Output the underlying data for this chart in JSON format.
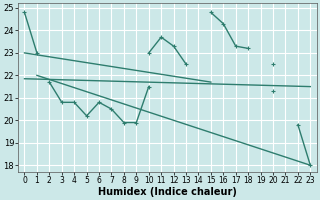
{
  "xlabel": "Humidex (Indice chaleur)",
  "bg_color": "#cce8e8",
  "grid_color": "#ffffff",
  "line_color": "#2e7d6e",
  "xlim": [
    -0.5,
    23.5
  ],
  "ylim": [
    17.7,
    25.2
  ],
  "yticks": [
    18,
    19,
    20,
    21,
    22,
    23,
    24,
    25
  ],
  "xticks": [
    0,
    1,
    2,
    3,
    4,
    5,
    6,
    7,
    8,
    9,
    10,
    11,
    12,
    13,
    14,
    15,
    16,
    17,
    18,
    19,
    20,
    21,
    22,
    23
  ],
  "series1_y": [
    24.8,
    23.0,
    null,
    null,
    null,
    null,
    null,
    null,
    null,
    null,
    23.0,
    23.7,
    23.3,
    22.5,
    null,
    24.8,
    24.3,
    23.3,
    23.2,
    null,
    22.5,
    null,
    null,
    null
  ],
  "series2_y": [
    null,
    null,
    21.7,
    20.8,
    20.8,
    20.2,
    20.8,
    20.5,
    19.9,
    19.9,
    21.5,
    null,
    null,
    null,
    null,
    null,
    null,
    null,
    null,
    null,
    21.3,
    null,
    19.8,
    18.0
  ],
  "trend1_x": [
    0,
    15
  ],
  "trend1_y": [
    23.0,
    21.7
  ],
  "trend2_x": [
    0,
    23
  ],
  "trend2_y": [
    21.85,
    21.5
  ],
  "trend3_x": [
    1,
    23
  ],
  "trend3_y": [
    22.0,
    18.0
  ]
}
